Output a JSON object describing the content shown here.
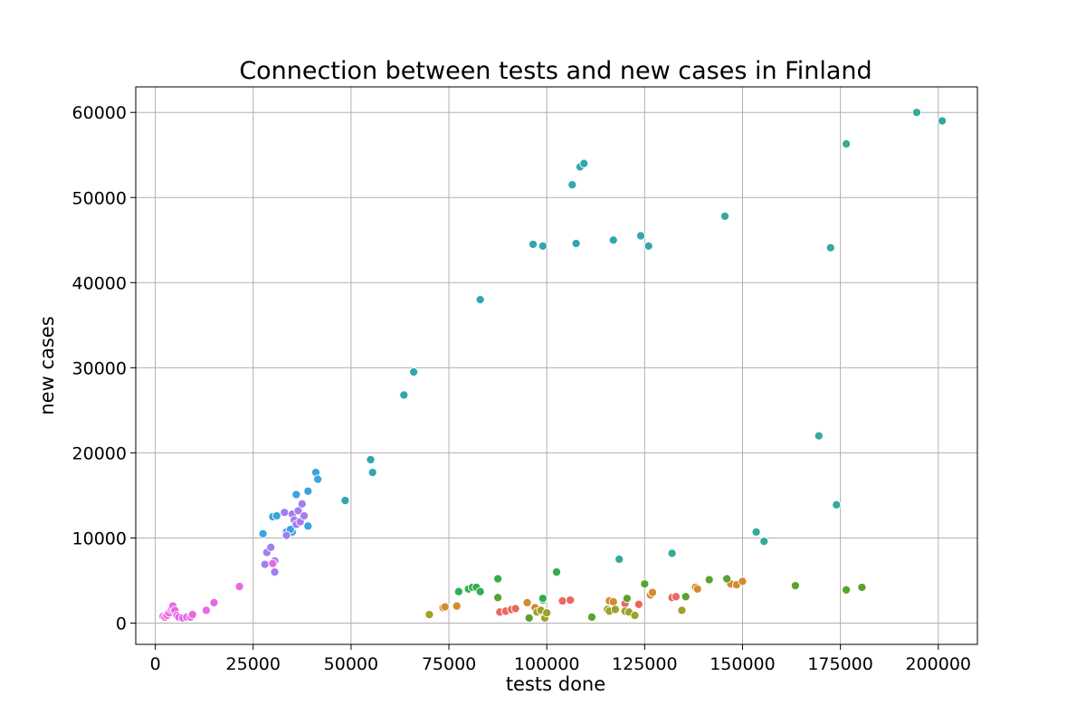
{
  "chart_data": {
    "type": "scatter",
    "title": "Connection between tests and new cases in Finland",
    "xlabel": "tests done",
    "ylabel": "new cases",
    "xlim": [
      -5000,
      210000
    ],
    "ylim": [
      -2500,
      63000
    ],
    "xticks": [
      0,
      25000,
      50000,
      75000,
      100000,
      125000,
      150000,
      175000,
      200000
    ],
    "yticks": [
      0,
      10000,
      20000,
      30000,
      40000,
      50000,
      60000
    ],
    "xtick_labels": [
      "0",
      "25000",
      "50000",
      "75000",
      "100000",
      "125000",
      "150000",
      "175000",
      "200000"
    ],
    "ytick_labels": [
      "0",
      "10000",
      "20000",
      "30000",
      "40000",
      "50000",
      "60000"
    ],
    "grid": true,
    "legend": "none",
    "series": [
      {
        "color": "#e9685f",
        "points": [
          [
            88000,
            1300
          ],
          [
            89500,
            1400
          ],
          [
            91000,
            1600
          ],
          [
            92000,
            1700
          ],
          [
            104000,
            2600
          ],
          [
            106000,
            2700
          ],
          [
            120000,
            2300
          ],
          [
            123500,
            2200
          ],
          [
            132000,
            3000
          ],
          [
            133000,
            3100
          ]
        ]
      },
      {
        "color": "#d38b2c",
        "points": [
          [
            73500,
            1800
          ],
          [
            74000,
            1900
          ],
          [
            77000,
            2000
          ],
          [
            95000,
            2400
          ],
          [
            97000,
            1800
          ],
          [
            116000,
            2600
          ],
          [
            117000,
            2500
          ],
          [
            126500,
            3300
          ],
          [
            127000,
            3600
          ],
          [
            138000,
            4200
          ],
          [
            138500,
            4000
          ],
          [
            147000,
            4600
          ],
          [
            148500,
            4500
          ],
          [
            150000,
            4900
          ]
        ]
      },
      {
        "color": "#9ea12a",
        "points": [
          [
            70000,
            1000
          ],
          [
            97500,
            1300
          ],
          [
            98500,
            1500
          ],
          [
            99500,
            600
          ],
          [
            100000,
            1200
          ],
          [
            115500,
            1600
          ],
          [
            116000,
            1400
          ],
          [
            117500,
            1600
          ],
          [
            120000,
            1400
          ],
          [
            121000,
            1300
          ],
          [
            122500,
            900
          ],
          [
            134500,
            1500
          ]
        ]
      },
      {
        "color": "#5aa32f",
        "points": [
          [
            87500,
            3000
          ],
          [
            95500,
            600
          ],
          [
            99000,
            2700
          ],
          [
            111500,
            700
          ],
          [
            120500,
            2900
          ],
          [
            125000,
            4600
          ],
          [
            135500,
            3100
          ],
          [
            141500,
            5100
          ],
          [
            146000,
            5200
          ],
          [
            163500,
            4400
          ],
          [
            176500,
            3900
          ],
          [
            180500,
            4200
          ]
        ]
      },
      {
        "color": "#33ac50",
        "points": [
          [
            77500,
            3700
          ],
          [
            80000,
            4000
          ],
          [
            81000,
            4200
          ],
          [
            82000,
            4200
          ],
          [
            83000,
            3700
          ],
          [
            87500,
            5200
          ],
          [
            99000,
            2900
          ],
          [
            102500,
            6000
          ]
        ]
      },
      {
        "color": "#35a99a",
        "points": [
          [
            118500,
            7500
          ],
          [
            132000,
            8200
          ],
          [
            153500,
            10700
          ],
          [
            155500,
            9600
          ],
          [
            169500,
            22000
          ],
          [
            174000,
            13900
          ],
          [
            172500,
            44100
          ],
          [
            176500,
            56300
          ],
          [
            194500,
            60000
          ],
          [
            201000,
            59000
          ],
          [
            145500,
            47800
          ]
        ]
      },
      {
        "color": "#33a6b0",
        "points": [
          [
            48500,
            14400
          ],
          [
            55000,
            19200
          ],
          [
            55500,
            17700
          ],
          [
            63500,
            26800
          ],
          [
            66000,
            29500
          ],
          [
            83000,
            38000
          ],
          [
            96500,
            44500
          ],
          [
            99000,
            44300
          ],
          [
            106500,
            51500
          ],
          [
            107500,
            44600
          ],
          [
            108500,
            53600
          ],
          [
            109500,
            54000
          ],
          [
            117000,
            45000
          ],
          [
            124000,
            45500
          ],
          [
            126000,
            44300
          ]
        ]
      },
      {
        "color": "#3aa3e0",
        "points": [
          [
            27500,
            10500
          ],
          [
            30000,
            12500
          ],
          [
            31000,
            12600
          ],
          [
            36000,
            15100
          ],
          [
            39000,
            15500
          ],
          [
            41000,
            17700
          ],
          [
            41500,
            16900
          ],
          [
            39000,
            11400
          ],
          [
            35000,
            10700
          ],
          [
            33500,
            10700
          ],
          [
            34500,
            11000
          ]
        ]
      },
      {
        "color": "#a37ef0",
        "points": [
          [
            28000,
            6900
          ],
          [
            28500,
            8300
          ],
          [
            29500,
            8900
          ],
          [
            30500,
            7300
          ],
          [
            30500,
            6000
          ],
          [
            33000,
            13000
          ],
          [
            33500,
            10300
          ],
          [
            35000,
            12800
          ],
          [
            35500,
            12100
          ],
          [
            36000,
            11600
          ],
          [
            36500,
            13200
          ],
          [
            37000,
            11900
          ],
          [
            37500,
            14000
          ],
          [
            38000,
            12600
          ]
        ]
      },
      {
        "color": "#e868e6",
        "points": [
          [
            2000,
            800
          ],
          [
            2500,
            700
          ],
          [
            3000,
            900
          ],
          [
            3500,
            1200
          ],
          [
            4000,
            1600
          ],
          [
            4200,
            1800
          ],
          [
            4500,
            2000
          ],
          [
            5000,
            1500
          ],
          [
            5500,
            900
          ],
          [
            6000,
            700
          ],
          [
            7000,
            600
          ],
          [
            8000,
            700
          ],
          [
            9000,
            700
          ],
          [
            9500,
            1000
          ],
          [
            13000,
            1500
          ],
          [
            15000,
            2400
          ],
          [
            21500,
            4300
          ],
          [
            30000,
            7000
          ]
        ]
      }
    ]
  }
}
